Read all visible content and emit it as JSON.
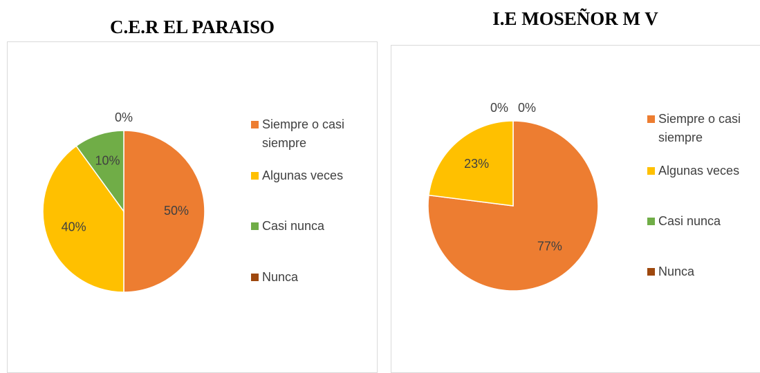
{
  "chart_data": [
    {
      "type": "pie",
      "title": "C.E.R EL PARAISO",
      "categories": [
        "Siempre o casi siempre",
        "Algunas veces",
        "Casi nunca",
        "Nunca"
      ],
      "values": [
        50,
        40,
        10,
        0
      ],
      "value_labels": [
        "50%",
        "40%",
        "10%",
        "0%"
      ],
      "colors": [
        "#ed7d31",
        "#ffc000",
        "#70ad47",
        "#9e480e"
      ],
      "legend": "right"
    },
    {
      "type": "pie",
      "title": "I.E MOSEÑOR M V",
      "categories": [
        "Siempre o casi siempre",
        "Algunas veces",
        "Casi nunca",
        "Nunca"
      ],
      "values": [
        77,
        23,
        0,
        0
      ],
      "value_labels": [
        "77%",
        "23%",
        "0%",
        "0%"
      ],
      "colors": [
        "#ed7d31",
        "#ffc000",
        "#70ad47",
        "#9e480e"
      ],
      "legend": "right"
    }
  ]
}
